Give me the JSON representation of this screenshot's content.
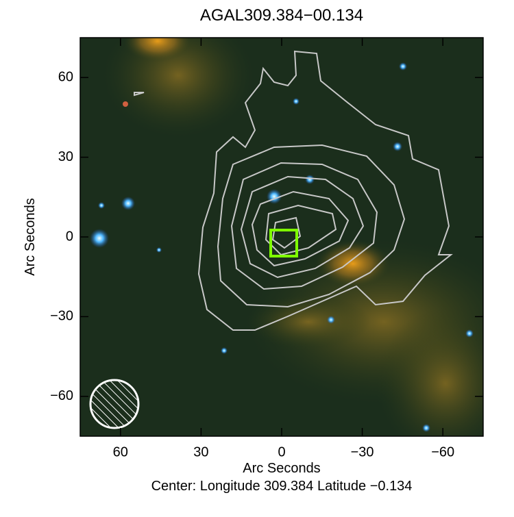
{
  "chart_data": {
    "type": "image",
    "title": "AGAL309.384−00.134",
    "x_label": "Arc Seconds",
    "y_label": "Arc Seconds",
    "caption": "Center:  Longitude 309.384 Latitude −0.134",
    "xlim": [
      75,
      -75
    ],
    "ylim": [
      -75,
      75
    ],
    "xticks": [
      60,
      30,
      0,
      {
        "value": -30,
        "label": "−30"
      },
      {
        "value": -60,
        "label": "−60"
      }
    ],
    "yticks": [
      60,
      30,
      0,
      {
        "value": -30,
        "label": "−30"
      },
      {
        "value": -60,
        "label": "−60"
      }
    ]
  }
}
